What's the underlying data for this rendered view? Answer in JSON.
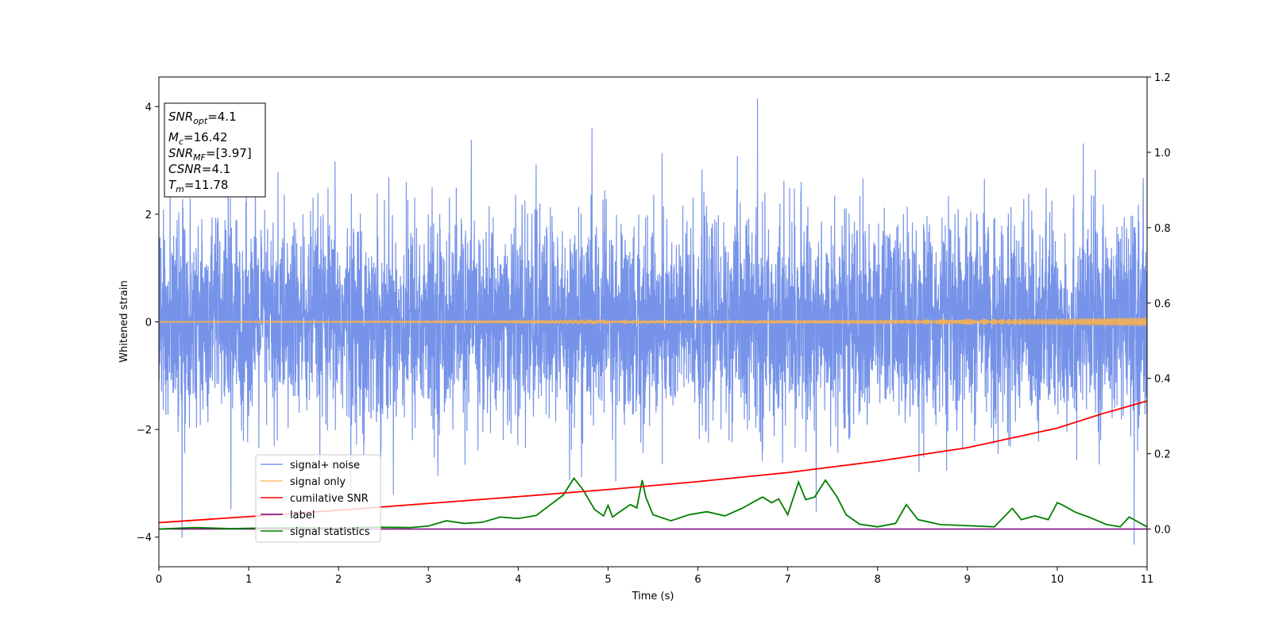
{
  "chart_data": {
    "type": "line",
    "xlabel": "Time (s)",
    "ylabel": "Whitened strain",
    "xlim": [
      0,
      11
    ],
    "ylim": [
      -4.55,
      4.55
    ],
    "y2lim": [
      -0.1,
      1.2
    ],
    "x_ticks": [
      "0",
      "1",
      "2",
      "3",
      "4",
      "5",
      "6",
      "7",
      "8",
      "9",
      "10",
      "11"
    ],
    "y_ticks": [
      "−4",
      "−2",
      "0",
      "2",
      "4"
    ],
    "y2_ticks": [
      "0.0",
      "0.2",
      "0.4",
      "0.6",
      "0.8",
      "1.0",
      "1.2"
    ],
    "grid": false,
    "legend_position": "lower-left",
    "annotation": {
      "snr_opt": {
        "base": "SNR",
        "sub": "opt",
        "value": "=4.1"
      },
      "mc": {
        "base": "M",
        "sub": "c",
        "value": "=16.42"
      },
      "snr_mf": {
        "base": "SNR",
        "sub": "MF",
        "value": "=[3.97]"
      },
      "csnr": {
        "base": "CSNR",
        "value": "=4.1"
      },
      "tm": {
        "base": "T",
        "sub": "m",
        "value": "=11.78"
      }
    },
    "series": [
      {
        "name": "signal+ noise",
        "axis": "left",
        "color": "#4169e1",
        "kind": "noise",
        "description_values": {
          "rms": 1.0,
          "min": -4.15,
          "max": 4.15
        }
      },
      {
        "name": "signal only",
        "axis": "left",
        "color": "#ffb347",
        "kind": "chirp",
        "amplitude_start": 0.01,
        "amplitude_end": 0.08
      },
      {
        "name": "cumilative SNR",
        "axis": "right",
        "color": "#ff0000",
        "x": [
          0,
          1,
          2,
          3,
          4,
          5,
          6,
          7,
          8,
          9,
          10,
          10.5,
          11
        ],
        "y": [
          0.017,
          0.033,
          0.05,
          0.068,
          0.086,
          0.105,
          0.126,
          0.15,
          0.18,
          0.216,
          0.268,
          0.306,
          0.34
        ]
      },
      {
        "name": "label",
        "axis": "right",
        "color": "#800080",
        "x": [
          0,
          11
        ],
        "y": [
          0.0,
          0.0
        ]
      },
      {
        "name": "signal statistics",
        "axis": "right",
        "color": "#008000",
        "x": [
          0,
          0.4,
          0.8,
          1.2,
          1.6,
          2.0,
          2.4,
          2.8,
          3.0,
          3.2,
          3.4,
          3.6,
          3.8,
          4.0,
          4.2,
          4.4,
          4.5,
          4.62,
          4.72,
          4.85,
          4.95,
          5.0,
          5.05,
          5.15,
          5.25,
          5.32,
          5.38,
          5.42,
          5.5,
          5.7,
          5.9,
          6.1,
          6.3,
          6.5,
          6.65,
          6.72,
          6.82,
          6.9,
          7.0,
          7.12,
          7.2,
          7.3,
          7.42,
          7.55,
          7.65,
          7.8,
          8.0,
          8.2,
          8.32,
          8.45,
          8.7,
          9.0,
          9.3,
          9.5,
          9.6,
          9.75,
          9.9,
          10.0,
          10.05,
          10.2,
          10.35,
          10.55,
          10.7,
          10.8,
          11.0
        ],
        "y": [
          0.0,
          0.004,
          0.001,
          0.003,
          0.004,
          0.002,
          0.005,
          0.004,
          0.008,
          0.022,
          0.015,
          0.018,
          0.032,
          0.028,
          0.036,
          0.072,
          0.09,
          0.135,
          0.105,
          0.052,
          0.035,
          0.063,
          0.032,
          0.049,
          0.065,
          0.056,
          0.13,
          0.085,
          0.038,
          0.022,
          0.038,
          0.046,
          0.035,
          0.056,
          0.076,
          0.085,
          0.07,
          0.08,
          0.038,
          0.125,
          0.078,
          0.085,
          0.13,
          0.085,
          0.038,
          0.013,
          0.006,
          0.015,
          0.065,
          0.025,
          0.012,
          0.009,
          0.006,
          0.055,
          0.025,
          0.035,
          0.025,
          0.07,
          0.065,
          0.045,
          0.032,
          0.012,
          0.006,
          0.032,
          0.006
        ]
      }
    ]
  }
}
